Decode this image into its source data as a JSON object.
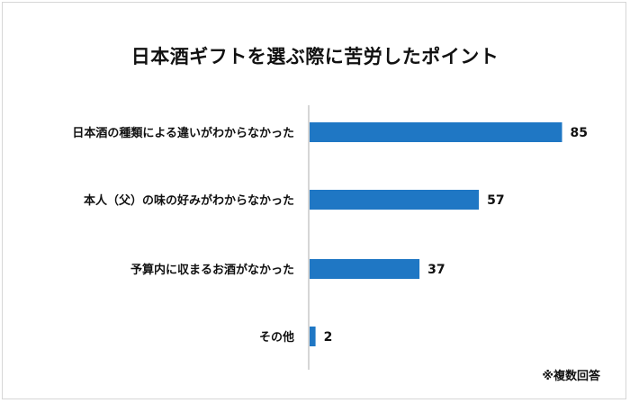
{
  "chart_data": {
    "type": "bar",
    "orientation": "horizontal",
    "title": "日本酒ギフトを選ぶ際に苦労したポイント",
    "categories": [
      "日本酒の種類による違いがわからなかった",
      "本人（父）の味の好みがわからなかった",
      "予算内に収まるお酒がなかった",
      "その他"
    ],
    "values": [
      85,
      57,
      37,
      2
    ],
    "xlim": [
      0,
      100
    ],
    "grid": false,
    "legend": "none",
    "bar_color": "#1f77c4",
    "axis_color": "#c8c8c8",
    "note": "※複数回答"
  }
}
